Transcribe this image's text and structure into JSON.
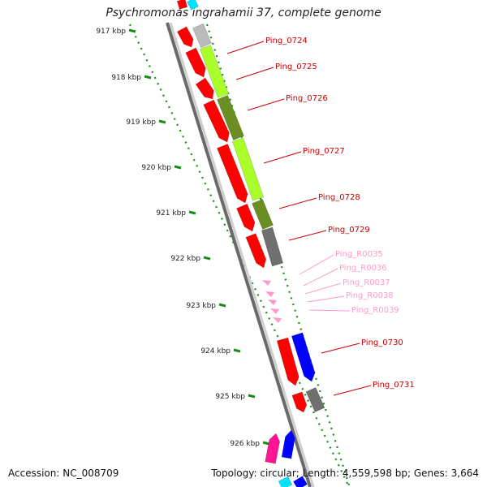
{
  "title": "Psychromonas ingrahamii 37, complete genome",
  "footer": {
    "accession": "Accession: NC_008709",
    "topology": "Topology: circular; Length: 4,559,598 bp; Genes: 3,664"
  },
  "colors": {
    "cds_red": "#ff0000",
    "light_green": "#aaff2a",
    "olive": "#6b8e23",
    "gray": "#707070",
    "blue": "#0000ff",
    "magenta": "#ff1493",
    "cyan": "#00e5ff",
    "rna_pink": "#ff99cc",
    "tick_green": "#1a8a1a",
    "backbone": "#999999"
  },
  "ruler": {
    "ticks": [
      "917 kbp",
      "918 kbp",
      "919 kbp",
      "920 kbp",
      "921 kbp",
      "922 kbp",
      "923 kbp",
      "924 kbp",
      "925 kbp",
      "926 kbp"
    ]
  },
  "labels": [
    {
      "text": "Ping_0724",
      "kind": "cds"
    },
    {
      "text": "Ping_0725",
      "kind": "cds"
    },
    {
      "text": "Ping_0726",
      "kind": "cds"
    },
    {
      "text": "Ping_0727",
      "kind": "cds"
    },
    {
      "text": "Ping_0728",
      "kind": "cds"
    },
    {
      "text": "Ping_0729",
      "kind": "cds"
    },
    {
      "text": "Ping_R0035",
      "kind": "rna"
    },
    {
      "text": "Ping_R0036",
      "kind": "rna"
    },
    {
      "text": "Ping_R0037",
      "kind": "rna"
    },
    {
      "text": "Ping_R0038",
      "kind": "rna"
    },
    {
      "text": "Ping_R0039",
      "kind": "rna"
    },
    {
      "text": "Ping_0730",
      "kind": "cds"
    },
    {
      "text": "Ping_0731",
      "kind": "cds"
    }
  ]
}
